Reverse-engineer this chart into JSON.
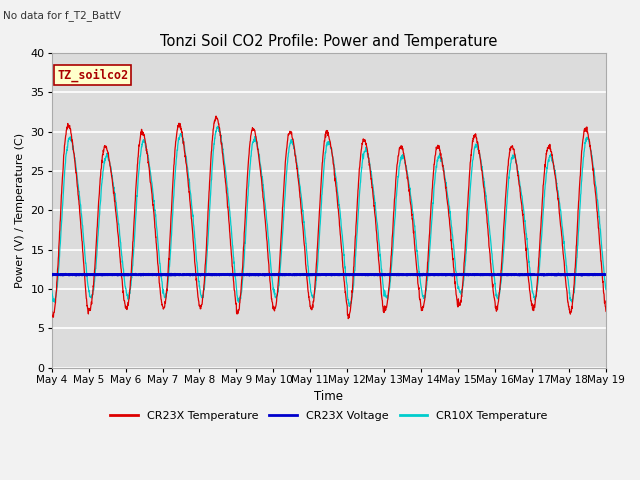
{
  "title": "Tonzi Soil CO2 Profile: Power and Temperature",
  "subtitle": "No data for f_T2_BattV",
  "ylabel": "Power (V) / Temperature (C)",
  "xlabel": "Time",
  "ylim": [
    0,
    40
  ],
  "yticks": [
    0,
    5,
    10,
    15,
    20,
    25,
    30,
    35,
    40
  ],
  "xtick_labels": [
    "May 4",
    "May 5",
    "May 6",
    "May 7",
    "May 8",
    "May 9",
    "May 10",
    "May 11",
    "May 12",
    "May 13",
    "May 14",
    "May 15",
    "May 16",
    "May 17",
    "May 18",
    "May 19"
  ],
  "cr23x_temp_color": "#DD0000",
  "cr23x_volt_color": "#0000CC",
  "cr10x_temp_color": "#00CCCC",
  "cr23x_volt_value": 11.85,
  "plot_bg_color": "#DCDCDC",
  "grid_color": "#FFFFFF",
  "legend_box_facecolor": "#FFFFCC",
  "legend_box_edge": "#AA0000",
  "annotation_text": "TZ_soilco2",
  "annotation_color": "#AA0000",
  "fig_facecolor": "#F2F2F2",
  "n_days": 15,
  "cr23x_amp_per_day": [
    13.5,
    11.5,
    12.5,
    13.0,
    13.5,
    13.0,
    12.5,
    12.5,
    12.5,
    11.5,
    11.5,
    12.0,
    11.5,
    11.5,
    13.0
  ],
  "cr23x_mid_per_day": [
    19.5,
    18.5,
    19.5,
    20.0,
    20.5,
    19.5,
    19.5,
    19.5,
    18.5,
    18.5,
    18.5,
    19.5,
    18.5,
    18.5,
    19.5
  ],
  "cr10x_amp_per_day": [
    11.5,
    10.0,
    11.0,
    11.5,
    12.0,
    11.5,
    11.0,
    11.0,
    11.0,
    10.0,
    10.0,
    10.5,
    10.0,
    10.0,
    11.5
  ],
  "cr10x_mid_per_day": [
    19.5,
    18.5,
    19.5,
    20.0,
    20.5,
    19.5,
    19.5,
    19.5,
    18.5,
    18.5,
    18.5,
    19.5,
    18.5,
    18.5,
    19.5
  ]
}
